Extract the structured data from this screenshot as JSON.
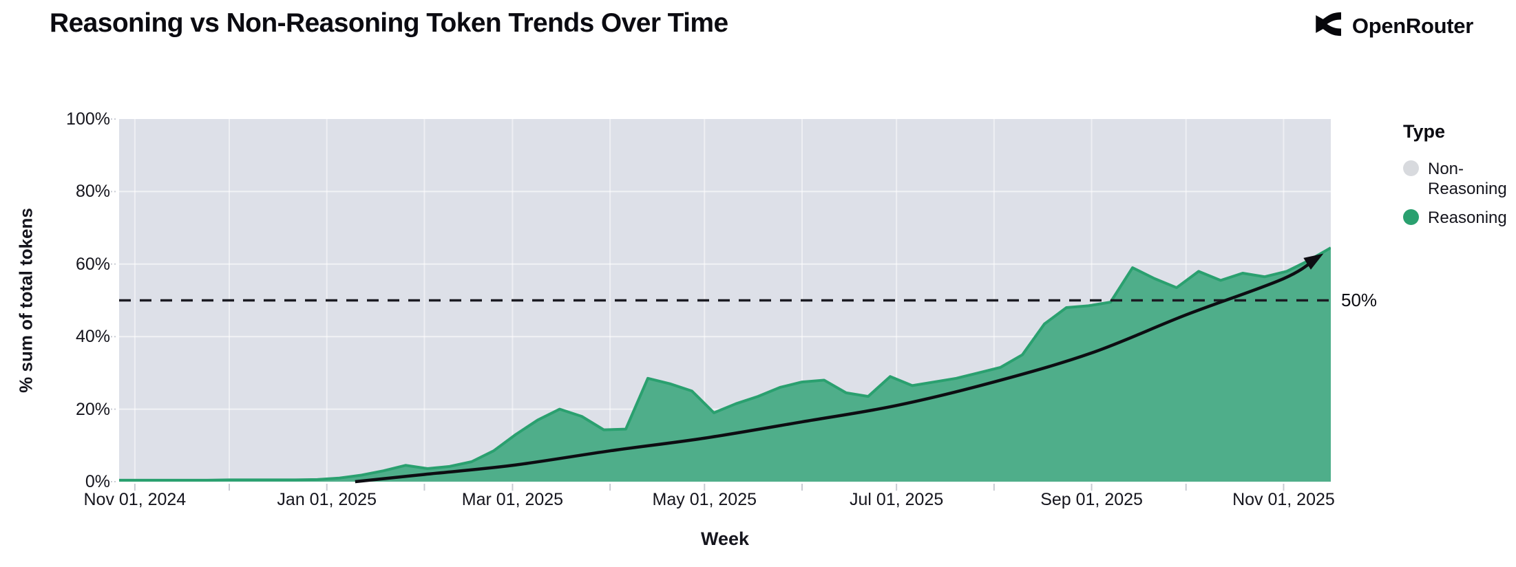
{
  "header": {
    "title": "Reasoning vs Non-Reasoning Token Trends Over Time",
    "brand": "OpenRouter"
  },
  "legend": {
    "title": "Type",
    "items": [
      {
        "label": "Non-Reasoning",
        "color": "#d8dade"
      },
      {
        "label": "Reasoning",
        "color": "#2aa06f"
      }
    ]
  },
  "chart_data": {
    "type": "area",
    "stacking": "percent",
    "title": "Reasoning vs Non-Reasoning Token Trends Over Time",
    "xlabel": "Week",
    "ylabel": "% sum of total tokens",
    "ylim": [
      0,
      100
    ],
    "grid": true,
    "legend_position": "right",
    "y_ticks": [
      {
        "value": 0,
        "label": "0%"
      },
      {
        "value": 20,
        "label": "20%"
      },
      {
        "value": 40,
        "label": "40%"
      },
      {
        "value": 60,
        "label": "60%"
      },
      {
        "value": 80,
        "label": "80%"
      },
      {
        "value": 100,
        "label": "100%"
      }
    ],
    "x_domain": [
      "2024-10-27",
      "2025-11-16"
    ],
    "x_ticks": [
      {
        "date": "2024-11-01",
        "label": "Nov 01, 2024"
      },
      {
        "date": "2025-01-01",
        "label": "Jan 01, 2025"
      },
      {
        "date": "2025-03-01",
        "label": "Mar 01, 2025"
      },
      {
        "date": "2025-05-01",
        "label": "May 01, 2025"
      },
      {
        "date": "2025-07-01",
        "label": "Jul 01, 2025"
      },
      {
        "date": "2025-09-01",
        "label": "Sep 01, 2025"
      },
      {
        "date": "2025-11-01",
        "label": "Nov 01, 2025"
      }
    ],
    "month_gridlines": [
      "2024-11-01",
      "2024-12-01",
      "2025-01-01",
      "2025-02-01",
      "2025-03-01",
      "2025-04-01",
      "2025-05-01",
      "2025-06-01",
      "2025-07-01",
      "2025-08-01",
      "2025-09-01",
      "2025-10-01",
      "2025-11-01"
    ],
    "series": [
      {
        "name": "Reasoning",
        "role": "bottom-area",
        "fill": "#4fae8a",
        "stroke": "#2aa06f",
        "dates": [
          "2024-10-27",
          "2024-11-03",
          "2024-11-10",
          "2024-11-17",
          "2024-11-24",
          "2024-12-01",
          "2024-12-08",
          "2024-12-15",
          "2024-12-22",
          "2024-12-29",
          "2025-01-05",
          "2025-01-12",
          "2025-01-19",
          "2025-01-26",
          "2025-02-02",
          "2025-02-09",
          "2025-02-16",
          "2025-02-23",
          "2025-03-02",
          "2025-03-09",
          "2025-03-16",
          "2025-03-23",
          "2025-03-30",
          "2025-04-06",
          "2025-04-13",
          "2025-04-20",
          "2025-04-27",
          "2025-05-04",
          "2025-05-11",
          "2025-05-18",
          "2025-05-25",
          "2025-06-01",
          "2025-06-08",
          "2025-06-15",
          "2025-06-22",
          "2025-06-29",
          "2025-07-06",
          "2025-07-13",
          "2025-07-20",
          "2025-07-27",
          "2025-08-03",
          "2025-08-10",
          "2025-08-17",
          "2025-08-24",
          "2025-08-31",
          "2025-09-07",
          "2025-09-14",
          "2025-09-21",
          "2025-09-28",
          "2025-10-05",
          "2025-10-12",
          "2025-10-19",
          "2025-10-26",
          "2025-11-02",
          "2025-11-09",
          "2025-11-16"
        ],
        "values": [
          0.4,
          0.4,
          0.4,
          0.4,
          0.4,
          0.5,
          0.5,
          0.5,
          0.5,
          0.6,
          1.0,
          1.8,
          3.0,
          4.5,
          3.6,
          4.2,
          5.5,
          8.5,
          13,
          17,
          20,
          18,
          14.3,
          14.5,
          28.5,
          27,
          25,
          19,
          21.5,
          23.5,
          26,
          27.5,
          28,
          24.5,
          23.5,
          29,
          26.5,
          27.5,
          28.5,
          30,
          31.5,
          35,
          43.5,
          48,
          48.5,
          49.5,
          59,
          56,
          53.5,
          58,
          55.5,
          57.5,
          56.5,
          58,
          61,
          64.5
        ]
      },
      {
        "name": "Non-Reasoning",
        "role": "top-remainder-area",
        "fill": "#dde0e8",
        "values_note": "100 minus Reasoning at every week"
      }
    ],
    "reference_line": {
      "value": 50,
      "label": "50%",
      "style": "dashed",
      "color": "#1b1b22"
    },
    "trend_arrow": {
      "color": "#0d0d12",
      "points": [
        [
          "2025-01-10",
          0
        ],
        [
          "2025-02-01",
          2
        ],
        [
          "2025-03-01",
          4.5
        ],
        [
          "2025-04-01",
          8.5
        ],
        [
          "2025-05-01",
          12
        ],
        [
          "2025-06-01",
          16.5
        ],
        [
          "2025-07-01",
          21
        ],
        [
          "2025-08-01",
          27.5
        ],
        [
          "2025-09-01",
          35.5
        ],
        [
          "2025-10-01",
          46
        ],
        [
          "2025-11-01",
          56
        ],
        [
          "2025-11-12",
          62
        ]
      ]
    }
  },
  "colors": {
    "page_bg": "#ffffff",
    "plot_bg": "#dde0e8",
    "grid": "#ffffff",
    "tick_mark": "#c8cbd3",
    "text": "#15151d"
  }
}
